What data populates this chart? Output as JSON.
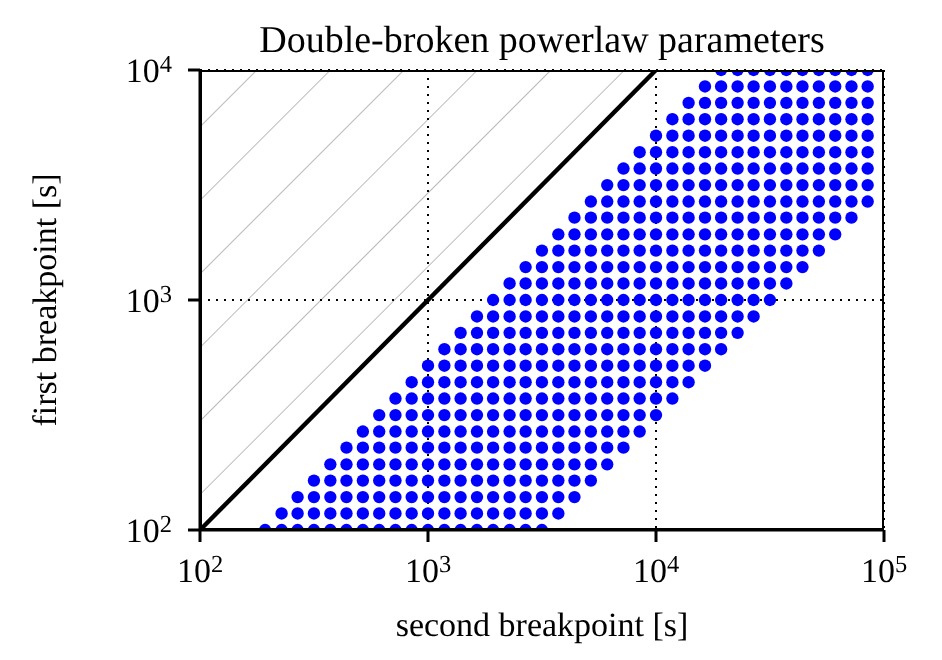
{
  "chart_data": {
    "type": "scatter",
    "title": "Double-broken powerlaw parameters",
    "xlabel": "second breakpoint [s]",
    "ylabel": "first breakpoint [s]",
    "log": "xy",
    "grid": true,
    "marker": "circle",
    "xlim": [
      100,
      100000
    ],
    "ylim": [
      100,
      10000
    ],
    "xticks": [
      {
        "value": 100,
        "label": "10$^{2}$"
      },
      {
        "value": 1000,
        "label": "10$^{3}$"
      },
      {
        "value": 10000,
        "label": "10$^{4}$"
      },
      {
        "value": 100000,
        "label": "10$^{5}$"
      }
    ],
    "yticks": [
      {
        "value": 100,
        "label": "10$^{2}$"
      },
      {
        "value": 1000,
        "label": "10$^{3}$"
      },
      {
        "value": 10000,
        "label": "10$^{4}$"
      }
    ],
    "series": [
      {
        "type": "line",
        "color": "#000000",
        "marker": "none",
        "x": [
          100,
          10000
        ],
        "values": [
          100,
          10000
        ],
        "lower": [
          100,
          10000
        ],
        "upper": [
          10000,
          10000
        ]
      },
      {
        "color": "#0000ff",
        "x": [
          193,
          228,
          268,
          316,
          373,
          439,
          518,
          611,
          720,
          848,
          1000,
          1180,
          1390,
          1640,
          1930,
          2280,
          2680,
          3160
        ],
        "values": [
          100,
          100,
          100,
          100,
          100,
          100,
          100,
          100,
          100,
          100,
          100,
          100,
          100,
          100,
          100,
          100,
          100,
          100
        ]
      },
      {
        "color": "#0000ff",
        "x": [
          228,
          268,
          316,
          373,
          439,
          518,
          611,
          720,
          848,
          1000,
          1180,
          1390,
          1640,
          1930,
          2280,
          2680,
          3160,
          3730
        ],
        "values": [
          118,
          118,
          118,
          118,
          118,
          118,
          118,
          118,
          118,
          118,
          118,
          118,
          118,
          118,
          118,
          118,
          118,
          118
        ]
      },
      {
        "color": "#0000ff",
        "x": [
          268,
          316,
          373,
          439,
          518,
          611,
          720,
          848,
          1000,
          1180,
          1390,
          1640,
          1930,
          2280,
          2680,
          3160,
          3730,
          4390
        ],
        "values": [
          139,
          139,
          139,
          139,
          139,
          139,
          139,
          139,
          139,
          139,
          139,
          139,
          139,
          139,
          139,
          139,
          139,
          139
        ]
      },
      {
        "color": "#0000ff",
        "x": [
          316,
          373,
          439,
          518,
          611,
          720,
          848,
          1000,
          1180,
          1390,
          1640,
          1930,
          2280,
          2680,
          3160,
          3730,
          4390,
          5180
        ],
        "values": [
          164,
          164,
          164,
          164,
          164,
          164,
          164,
          164,
          164,
          164,
          164,
          164,
          164,
          164,
          164,
          164,
          164,
          164
        ]
      },
      {
        "color": "#0000ff",
        "x": [
          373,
          439,
          518,
          611,
          720,
          848,
          1000,
          1180,
          1390,
          1640,
          1930,
          2280,
          2680,
          3160,
          3730,
          4390,
          5180,
          6110
        ],
        "values": [
          193,
          193,
          193,
          193,
          193,
          193,
          193,
          193,
          193,
          193,
          193,
          193,
          193,
          193,
          193,
          193,
          193,
          193
        ]
      },
      {
        "color": "#0000ff",
        "x": [
          439,
          518,
          611,
          720,
          848,
          1000,
          1180,
          1390,
          1640,
          1930,
          2280,
          2680,
          3160,
          3730,
          4390,
          5180,
          6110,
          7200
        ],
        "values": [
          228,
          228,
          228,
          228,
          228,
          228,
          228,
          228,
          228,
          228,
          228,
          228,
          228,
          228,
          228,
          228,
          228,
          228
        ]
      },
      {
        "color": "#0000ff",
        "x": [
          518,
          611,
          720,
          848,
          1000,
          1180,
          1390,
          1640,
          1930,
          2280,
          2680,
          3160,
          3730,
          4390,
          5180,
          6110,
          7200,
          8480
        ],
        "values": [
          268,
          268,
          268,
          268,
          268,
          268,
          268,
          268,
          268,
          268,
          268,
          268,
          268,
          268,
          268,
          268,
          268,
          268
        ]
      },
      {
        "color": "#0000ff",
        "x": [
          611,
          720,
          848,
          1000,
          1180,
          1390,
          1640,
          1930,
          2280,
          2680,
          3160,
          3730,
          4390,
          5180,
          6110,
          7200,
          8480,
          10000
        ],
        "values": [
          316,
          316,
          316,
          316,
          316,
          316,
          316,
          316,
          316,
          316,
          316,
          316,
          316,
          316,
          316,
          316,
          316,
          316
        ]
      },
      {
        "color": "#0000ff",
        "x": [
          720,
          848,
          1000,
          1180,
          1390,
          1640,
          1930,
          2280,
          2680,
          3160,
          3730,
          4390,
          5180,
          6110,
          7200,
          8480,
          10000,
          11800
        ],
        "values": [
          373,
          373,
          373,
          373,
          373,
          373,
          373,
          373,
          373,
          373,
          373,
          373,
          373,
          373,
          373,
          373,
          373,
          373
        ]
      },
      {
        "color": "#0000ff",
        "x": [
          848,
          1000,
          1180,
          1390,
          1640,
          1930,
          2280,
          2680,
          3160,
          3730,
          4390,
          5180,
          6110,
          7200,
          8480,
          10000,
          11800,
          13900
        ],
        "values": [
          439,
          439,
          439,
          439,
          439,
          439,
          439,
          439,
          439,
          439,
          439,
          439,
          439,
          439,
          439,
          439,
          439,
          439
        ]
      },
      {
        "color": "#0000ff",
        "x": [
          1000,
          1180,
          1390,
          1640,
          1930,
          2280,
          2680,
          3160,
          3730,
          4390,
          5180,
          6110,
          7200,
          8480,
          10000,
          11800,
          13900,
          16400
        ],
        "values": [
          518,
          518,
          518,
          518,
          518,
          518,
          518,
          518,
          518,
          518,
          518,
          518,
          518,
          518,
          518,
          518,
          518,
          518
        ]
      },
      {
        "color": "#0000ff",
        "x": [
          1180,
          1390,
          1640,
          1930,
          2280,
          2680,
          3160,
          3730,
          4390,
          5180,
          6110,
          7200,
          8480,
          10000,
          11800,
          13900,
          16400,
          19300
        ],
        "values": [
          611,
          611,
          611,
          611,
          611,
          611,
          611,
          611,
          611,
          611,
          611,
          611,
          611,
          611,
          611,
          611,
          611,
          611
        ]
      },
      {
        "color": "#0000ff",
        "x": [
          1390,
          1640,
          1930,
          2280,
          2680,
          3160,
          3730,
          4390,
          5180,
          6110,
          7200,
          8480,
          10000,
          11800,
          13900,
          16400,
          19300,
          22800
        ],
        "values": [
          720,
          720,
          720,
          720,
          720,
          720,
          720,
          720,
          720,
          720,
          720,
          720,
          720,
          720,
          720,
          720,
          720,
          720
        ]
      },
      {
        "color": "#0000ff",
        "x": [
          1640,
          1930,
          2280,
          2680,
          3160,
          3730,
          4390,
          5180,
          6110,
          7200,
          8480,
          10000,
          11800,
          13900,
          16400,
          19300,
          22800,
          26800
        ],
        "values": [
          848,
          848,
          848,
          848,
          848,
          848,
          848,
          848,
          848,
          848,
          848,
          848,
          848,
          848,
          848,
          848,
          848,
          848
        ]
      },
      {
        "color": "#0000ff",
        "x": [
          1930,
          2280,
          2680,
          3160,
          3730,
          4390,
          5180,
          6110,
          7200,
          8480,
          10000,
          11800,
          13900,
          16400,
          19300,
          22800,
          26800,
          31600
        ],
        "values": [
          1000,
          1000,
          1000,
          1000,
          1000,
          1000,
          1000,
          1000,
          1000,
          1000,
          1000,
          1000,
          1000,
          1000,
          1000,
          1000,
          1000,
          1000
        ]
      },
      {
        "color": "#0000ff",
        "x": [
          2280,
          2680,
          3160,
          3730,
          4390,
          5180,
          6110,
          7200,
          8480,
          10000,
          11800,
          13900,
          16400,
          19300,
          22800,
          26800,
          31600,
          37300
        ],
        "values": [
          1180,
          1180,
          1180,
          1180,
          1180,
          1180,
          1180,
          1180,
          1180,
          1180,
          1180,
          1180,
          1180,
          1180,
          1180,
          1180,
          1180,
          1180
        ]
      },
      {
        "color": "#0000ff",
        "x": [
          2680,
          3160,
          3730,
          4390,
          5180,
          6110,
          7200,
          8480,
          10000,
          11800,
          13900,
          16400,
          19300,
          22800,
          26800,
          31600,
          37300,
          43900
        ],
        "values": [
          1390,
          1390,
          1390,
          1390,
          1390,
          1390,
          1390,
          1390,
          1390,
          1390,
          1390,
          1390,
          1390,
          1390,
          1390,
          1390,
          1390,
          1390
        ]
      },
      {
        "color": "#0000ff",
        "x": [
          3160,
          3730,
          4390,
          5180,
          6110,
          7200,
          8480,
          10000,
          11800,
          13900,
          16400,
          19300,
          22800,
          26800,
          31600,
          37300,
          43900,
          51800
        ],
        "values": [
          1640,
          1640,
          1640,
          1640,
          1640,
          1640,
          1640,
          1640,
          1640,
          1640,
          1640,
          1640,
          1640,
          1640,
          1640,
          1640,
          1640,
          1640
        ]
      },
      {
        "color": "#0000ff",
        "x": [
          3730,
          4390,
          5180,
          6110,
          7200,
          8480,
          10000,
          11800,
          13900,
          16400,
          19300,
          22800,
          26800,
          31600,
          37300,
          43900,
          51800,
          61100
        ],
        "values": [
          1930,
          1930,
          1930,
          1930,
          1930,
          1930,
          1930,
          1930,
          1930,
          1930,
          1930,
          1930,
          1930,
          1930,
          1930,
          1930,
          1930,
          1930
        ]
      },
      {
        "color": "#0000ff",
        "x": [
          4390,
          5180,
          6110,
          7200,
          8480,
          10000,
          11800,
          13900,
          16400,
          19300,
          22800,
          26800,
          31600,
          37300,
          43900,
          51800,
          61100,
          72000
        ],
        "values": [
          2280,
          2280,
          2280,
          2280,
          2280,
          2280,
          2280,
          2280,
          2280,
          2280,
          2280,
          2280,
          2280,
          2280,
          2280,
          2280,
          2280,
          2280
        ]
      },
      {
        "color": "#0000ff",
        "x": [
          5180,
          6110,
          7200,
          8480,
          10000,
          11800,
          13900,
          16400,
          19300,
          22800,
          26800,
          31600,
          37300,
          43900,
          51800,
          61100,
          72000,
          84800
        ],
        "values": [
          2680,
          2680,
          2680,
          2680,
          2680,
          2680,
          2680,
          2680,
          2680,
          2680,
          2680,
          2680,
          2680,
          2680,
          2680,
          2680,
          2680,
          2680
        ]
      },
      {
        "color": "#0000ff",
        "x": [
          6110,
          7200,
          8480,
          10000,
          11800,
          13900,
          16400,
          19300,
          22800,
          26800,
          31600,
          37300,
          43900,
          51800,
          61100,
          72000,
          84800
        ],
        "values": [
          3160,
          3160,
          3160,
          3160,
          3160,
          3160,
          3160,
          3160,
          3160,
          3160,
          3160,
          3160,
          3160,
          3160,
          3160,
          3160,
          3160
        ]
      },
      {
        "color": "#0000ff",
        "x": [
          7200,
          8480,
          10000,
          11800,
          13900,
          16400,
          19300,
          22800,
          26800,
          31600,
          37300,
          43900,
          51800,
          61100,
          72000,
          84800
        ],
        "values": [
          3730,
          3730,
          3730,
          3730,
          3730,
          3730,
          3730,
          3730,
          3730,
          3730,
          3730,
          3730,
          3730,
          3730,
          3730,
          3730
        ]
      },
      {
        "color": "#0000ff",
        "x": [
          8480,
          10000,
          11800,
          13900,
          16400,
          19300,
          22800,
          26800,
          31600,
          37300,
          43900,
          51800,
          61100,
          72000,
          84800
        ],
        "values": [
          4390,
          4390,
          4390,
          4390,
          4390,
          4390,
          4390,
          4390,
          4390,
          4390,
          4390,
          4390,
          4390,
          4390,
          4390
        ]
      },
      {
        "color": "#0000ff",
        "x": [
          10000,
          11800,
          13900,
          16400,
          19300,
          22800,
          26800,
          31600,
          37300,
          43900,
          51800,
          61100,
          72000,
          84800
        ],
        "values": [
          5180,
          5180,
          5180,
          5180,
          5180,
          5180,
          5180,
          5180,
          5180,
          5180,
          5180,
          5180,
          5180,
          5180
        ]
      },
      {
        "color": "#0000ff",
        "x": [
          11800,
          13900,
          16400,
          19300,
          22800,
          26800,
          31600,
          37300,
          43900,
          51800,
          61100,
          72000,
          84800
        ],
        "values": [
          6110,
          6110,
          6110,
          6110,
          6110,
          6110,
          6110,
          6110,
          6110,
          6110,
          6110,
          6110,
          6110
        ]
      },
      {
        "color": "#0000ff",
        "x": [
          13900,
          16400,
          19300,
          22800,
          26800,
          31600,
          37300,
          43900,
          51800,
          61100,
          72000,
          84800
        ],
        "values": [
          7200,
          7200,
          7200,
          7200,
          7200,
          7200,
          7200,
          7200,
          7200,
          7200,
          7200,
          7200
        ]
      },
      {
        "color": "#0000ff",
        "x": [
          16400,
          19300,
          22800,
          26800,
          31600,
          37300,
          43900,
          51800,
          61100,
          72000,
          84800
        ],
        "values": [
          8480,
          8480,
          8480,
          8480,
          8480,
          8480,
          8480,
          8480,
          8480,
          8480,
          8480
        ]
      },
      {
        "color": "#0000ff",
        "x": [
          19300,
          22800,
          26800,
          31600,
          37300,
          43900,
          51800,
          61100,
          72000,
          84800
        ],
        "values": [
          10000,
          10000,
          10000,
          10000,
          10000,
          10000,
          10000,
          10000,
          10000,
          10000
        ]
      }
    ]
  }
}
